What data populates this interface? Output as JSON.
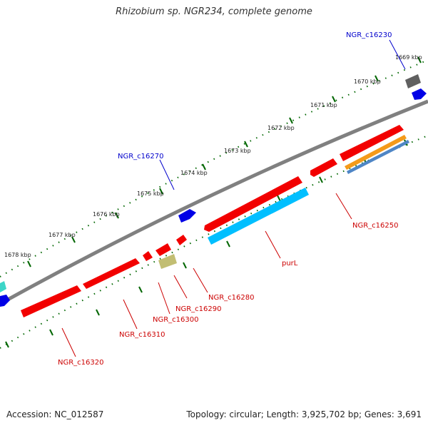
{
  "title": "Rhizobium sp. NGR234, complete genome",
  "footer": {
    "accession": "Accession: NC_012587",
    "summary": "Topology: circular; Length: 3,925,702 bp; Genes: 3,691"
  },
  "colors": {
    "backbone": "#808080",
    "forward_gene": "#f20000",
    "reverse_gene": "#0000e6",
    "purL": "#00bfff",
    "label_forward": "#0000cc",
    "label_reverse": "#cc0000",
    "tick": "#006600"
  },
  "kbp_ticks": [
    "1669 kbp",
    "1670 kbp",
    "1671 kbp",
    "1672 kbp",
    "1673 kbp",
    "1674 kbp",
    "1675 kbp",
    "1676 kbp",
    "1677 kbp",
    "1678 kbp"
  ],
  "gene_labels": {
    "NGR_c16230": "NGR_c16230",
    "NGR_c16270": "NGR_c16270",
    "NGR_c16250": "NGR_c16250",
    "purL": "purL",
    "NGR_c16280": "NGR_c16280",
    "NGR_c16290": "NGR_c16290",
    "NGR_c16300": "NGR_c16300",
    "NGR_c16310": "NGR_c16310",
    "NGR_c16320": "NGR_c16320"
  }
}
